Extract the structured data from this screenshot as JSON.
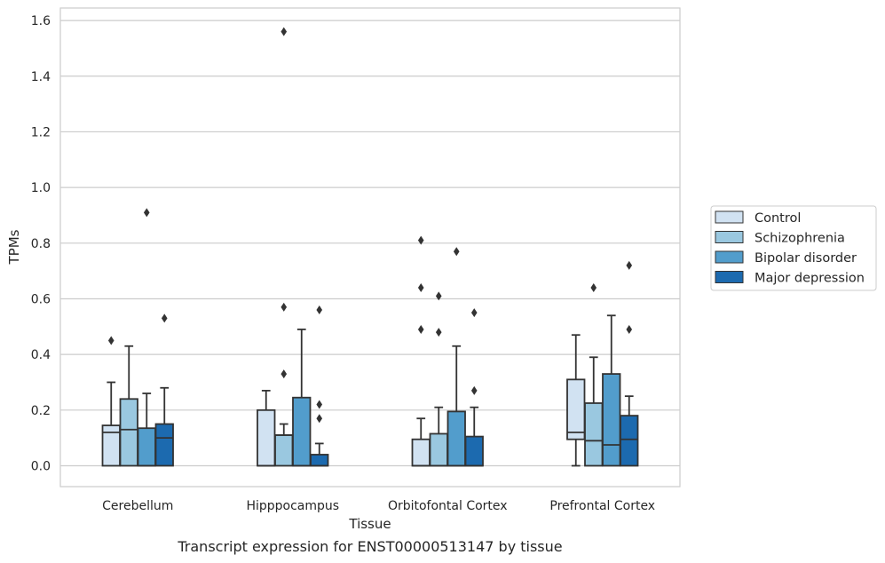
{
  "caption": "Transcript expression for ENST00000513147 by tissue",
  "chart_data": {
    "type": "box",
    "xlabel": "Tissue",
    "ylabel": "TPMs",
    "ylim": [
      -0.075,
      1.645
    ],
    "yticks": [
      0.0,
      0.2,
      0.4,
      0.6,
      0.8,
      1.0,
      1.2,
      1.4,
      1.6
    ],
    "ytick_labels": [
      "0.0",
      "0.2",
      "0.4",
      "0.6",
      "0.8",
      "1.0",
      "1.2",
      "1.4",
      "1.6"
    ],
    "grid": "horizontal",
    "legend_position": "right",
    "categories": [
      "Cerebellum",
      "Hipppocampus",
      "Orbitofontal Cortex",
      "Prefrontal Cortex"
    ],
    "series": [
      {
        "name": "Control",
        "color": "#d1e2f2",
        "boxes": [
          {
            "whislo": 0.0,
            "q1": 0.0,
            "med": 0.12,
            "q3": 0.145,
            "whishi": 0.3,
            "fliers": [
              0.45
            ]
          },
          {
            "whislo": 0.0,
            "q1": 0.0,
            "med": 0.0,
            "q3": 0.2,
            "whishi": 0.27,
            "fliers": []
          },
          {
            "whislo": 0.0,
            "q1": 0.0,
            "med": 0.0,
            "q3": 0.095,
            "whishi": 0.17,
            "fliers": [
              0.49,
              0.64,
              0.81
            ]
          },
          {
            "whislo": 0.0,
            "q1": 0.095,
            "med": 0.12,
            "q3": 0.31,
            "whishi": 0.47,
            "fliers": []
          }
        ]
      },
      {
        "name": "Schizophrenia",
        "color": "#9ac8e0",
        "boxes": [
          {
            "whislo": 0.0,
            "q1": 0.0,
            "med": 0.13,
            "q3": 0.24,
            "whishi": 0.43,
            "fliers": []
          },
          {
            "whislo": 0.0,
            "q1": 0.0,
            "med": 0.11,
            "q3": 0.11,
            "whishi": 0.15,
            "fliers": [
              0.33,
              0.57,
              1.56
            ]
          },
          {
            "whislo": 0.0,
            "q1": 0.0,
            "med": 0.0,
            "q3": 0.115,
            "whishi": 0.21,
            "fliers": [
              0.48,
              0.61
            ]
          },
          {
            "whislo": 0.0,
            "q1": 0.0,
            "med": 0.09,
            "q3": 0.225,
            "whishi": 0.39,
            "fliers": [
              0.64
            ]
          }
        ]
      },
      {
        "name": "Bipolar disorder",
        "color": "#529dcc",
        "boxes": [
          {
            "whislo": 0.0,
            "q1": 0.0,
            "med": 0.0,
            "q3": 0.135,
            "whishi": 0.26,
            "fliers": [
              0.91
            ]
          },
          {
            "whislo": 0.0,
            "q1": 0.0,
            "med": 0.0,
            "q3": 0.245,
            "whishi": 0.49,
            "fliers": []
          },
          {
            "whislo": 0.0,
            "q1": 0.0,
            "med": 0.0,
            "q3": 0.195,
            "whishi": 0.43,
            "fliers": [
              0.77
            ]
          },
          {
            "whislo": 0.0,
            "q1": 0.0,
            "med": 0.075,
            "q3": 0.33,
            "whishi": 0.54,
            "fliers": []
          }
        ]
      },
      {
        "name": "Major depression",
        "color": "#1c6aaf",
        "boxes": [
          {
            "whislo": 0.0,
            "q1": 0.0,
            "med": 0.1,
            "q3": 0.15,
            "whishi": 0.28,
            "fliers": [
              0.53
            ]
          },
          {
            "whislo": 0.0,
            "q1": 0.0,
            "med": 0.0,
            "q3": 0.04,
            "whishi": 0.08,
            "fliers": [
              0.17,
              0.22,
              0.56
            ]
          },
          {
            "whislo": 0.0,
            "q1": 0.0,
            "med": 0.0,
            "q3": 0.105,
            "whishi": 0.21,
            "fliers": [
              0.27,
              0.55
            ]
          },
          {
            "whislo": 0.0,
            "q1": 0.0,
            "med": 0.095,
            "q3": 0.18,
            "whishi": 0.25,
            "fliers": [
              0.49,
              0.72
            ]
          }
        ]
      }
    ]
  },
  "styles": {
    "grid_color": "#cccccc",
    "frame_color": "#cccccc",
    "line_color": "#333333",
    "background": "#ffffff"
  }
}
